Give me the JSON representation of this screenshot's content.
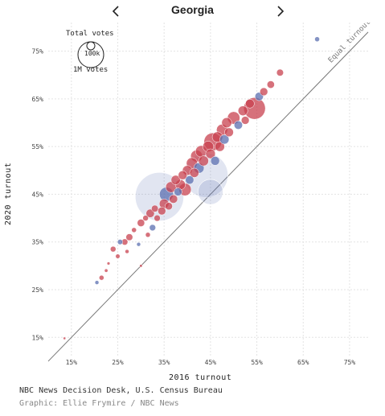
{
  "header": {
    "title": "Georgia",
    "prev_icon": "chevron-left-icon",
    "next_icon": "chevron-right-icon"
  },
  "legend": {
    "title": "Total votes",
    "size_small": "100k",
    "size_large": "1M votes"
  },
  "annotation": {
    "equal_line": "Equal turnout"
  },
  "source": "NBC News Decision Desk, U.S. Census Bureau",
  "credit": "Graphic: Ellie Frymire / NBC News",
  "colors": {
    "dem": "#5b6fb0",
    "rep": "#c8414f",
    "mixed": "#9a5a8a",
    "grid": "#e3e3e3"
  },
  "chart_data": {
    "type": "scatter",
    "xlabel": "2016 turnout",
    "ylabel": "2020 turnout",
    "xlim": [
      10,
      79
    ],
    "ylim": [
      11,
      81
    ],
    "x_ticks": [
      "15%",
      "25%",
      "35%",
      "45%",
      "55%",
      "65%",
      "75%"
    ],
    "x_tick_values": [
      15,
      25,
      35,
      45,
      55,
      65,
      75
    ],
    "y_ticks": [
      "15%",
      "25%",
      "35%",
      "45%",
      "55%",
      "65%",
      "75%"
    ],
    "y_tick_values": [
      15,
      25,
      35,
      45,
      55,
      65,
      75
    ],
    "grid": true,
    "reference_line": {
      "label": "Equal turnout",
      "x": [
        10,
        79
      ],
      "y": [
        10,
        79
      ]
    },
    "size_encoding": "total votes (bubble area)",
    "color_encoding": "red = Republican-leaning, blue = Democratic-leaning",
    "points": [
      {
        "x": 13.5,
        "y": 14.8,
        "votes": 400,
        "party": "rep"
      },
      {
        "x": 20.5,
        "y": 26.5,
        "votes": 2000,
        "party": "dem"
      },
      {
        "x": 21.5,
        "y": 27.5,
        "votes": 3000,
        "party": "rep"
      },
      {
        "x": 22.5,
        "y": 29.0,
        "votes": 1500,
        "party": "rep"
      },
      {
        "x": 23.0,
        "y": 30.5,
        "votes": 1200,
        "party": "rep"
      },
      {
        "x": 24.0,
        "y": 33.5,
        "votes": 4000,
        "party": "rep"
      },
      {
        "x": 25.0,
        "y": 32.0,
        "votes": 2500,
        "party": "rep"
      },
      {
        "x": 25.5,
        "y": 35.0,
        "votes": 3500,
        "party": "dem"
      },
      {
        "x": 26.5,
        "y": 35.0,
        "votes": 5000,
        "party": "rep"
      },
      {
        "x": 27.0,
        "y": 33.0,
        "votes": 2000,
        "party": "rep"
      },
      {
        "x": 27.5,
        "y": 36.0,
        "votes": 6000,
        "party": "rep"
      },
      {
        "x": 28.5,
        "y": 37.5,
        "votes": 3000,
        "party": "rep"
      },
      {
        "x": 29.5,
        "y": 34.5,
        "votes": 2000,
        "party": "dem"
      },
      {
        "x": 30.0,
        "y": 39.0,
        "votes": 7000,
        "party": "rep"
      },
      {
        "x": 31.0,
        "y": 40.0,
        "votes": 4000,
        "party": "rep"
      },
      {
        "x": 31.5,
        "y": 36.5,
        "votes": 3000,
        "party": "rep"
      },
      {
        "x": 32.0,
        "y": 41.0,
        "votes": 9000,
        "party": "rep"
      },
      {
        "x": 32.5,
        "y": 38.0,
        "votes": 5000,
        "party": "dem"
      },
      {
        "x": 33.0,
        "y": 42.0,
        "votes": 6000,
        "party": "rep"
      },
      {
        "x": 33.5,
        "y": 40.0,
        "votes": 5000,
        "party": "rep"
      },
      {
        "x": 34.0,
        "y": 44.5,
        "votes": 300000,
        "party": "dem"
      },
      {
        "x": 34.5,
        "y": 41.5,
        "votes": 8000,
        "party": "rep"
      },
      {
        "x": 35.0,
        "y": 43.0,
        "votes": 12000,
        "party": "rep"
      },
      {
        "x": 35.5,
        "y": 45.0,
        "votes": 25000,
        "party": "dem"
      },
      {
        "x": 36.0,
        "y": 42.5,
        "votes": 7000,
        "party": "rep"
      },
      {
        "x": 36.5,
        "y": 46.5,
        "votes": 15000,
        "party": "rep"
      },
      {
        "x": 37.0,
        "y": 44.0,
        "votes": 9000,
        "party": "rep"
      },
      {
        "x": 37.5,
        "y": 48.0,
        "votes": 11000,
        "party": "rep"
      },
      {
        "x": 38.0,
        "y": 45.5,
        "votes": 8000,
        "party": "dem"
      },
      {
        "x": 38.5,
        "y": 47.0,
        "votes": 13000,
        "party": "rep"
      },
      {
        "x": 39.0,
        "y": 49.0,
        "votes": 10000,
        "party": "rep"
      },
      {
        "x": 39.5,
        "y": 46.0,
        "votes": 20000,
        "party": "rep"
      },
      {
        "x": 40.0,
        "y": 50.0,
        "votes": 12000,
        "party": "rep"
      },
      {
        "x": 40.5,
        "y": 48.0,
        "votes": 9000,
        "party": "dem"
      },
      {
        "x": 41.0,
        "y": 51.5,
        "votes": 16000,
        "party": "rep"
      },
      {
        "x": 41.5,
        "y": 49.5,
        "votes": 11000,
        "party": "rep"
      },
      {
        "x": 42.0,
        "y": 53.0,
        "votes": 18000,
        "party": "rep"
      },
      {
        "x": 42.5,
        "y": 50.5,
        "votes": 14000,
        "party": "dem"
      },
      {
        "x": 43.0,
        "y": 54.0,
        "votes": 17000,
        "party": "rep"
      },
      {
        "x": 43.5,
        "y": 52.0,
        "votes": 13000,
        "party": "rep"
      },
      {
        "x": 44.0,
        "y": 49.0,
        "votes": 250000,
        "party": "dem"
      },
      {
        "x": 44.5,
        "y": 55.0,
        "votes": 15000,
        "party": "rep"
      },
      {
        "x": 45.0,
        "y": 53.5,
        "votes": 12000,
        "party": "rep"
      },
      {
        "x": 45.5,
        "y": 56.0,
        "votes": 40000,
        "party": "rep"
      },
      {
        "x": 46.0,
        "y": 52.0,
        "votes": 10000,
        "party": "dem"
      },
      {
        "x": 46.5,
        "y": 57.0,
        "votes": 14000,
        "party": "rep"
      },
      {
        "x": 47.0,
        "y": 55.0,
        "votes": 12000,
        "party": "rep"
      },
      {
        "x": 47.5,
        "y": 58.5,
        "votes": 16000,
        "party": "rep"
      },
      {
        "x": 48.0,
        "y": 56.5,
        "votes": 11000,
        "party": "dem"
      },
      {
        "x": 48.5,
        "y": 60.0,
        "votes": 13000,
        "party": "rep"
      },
      {
        "x": 49.0,
        "y": 58.0,
        "votes": 10000,
        "party": "rep"
      },
      {
        "x": 50.0,
        "y": 61.0,
        "votes": 20000,
        "party": "rep"
      },
      {
        "x": 51.0,
        "y": 59.5,
        "votes": 9000,
        "party": "dem"
      },
      {
        "x": 52.0,
        "y": 62.5,
        "votes": 12000,
        "party": "rep"
      },
      {
        "x": 52.5,
        "y": 60.5,
        "votes": 8000,
        "party": "rep"
      },
      {
        "x": 53.5,
        "y": 64.0,
        "votes": 10000,
        "party": "rep"
      },
      {
        "x": 54.5,
        "y": 63.0,
        "votes": 60000,
        "party": "rep"
      },
      {
        "x": 55.5,
        "y": 65.5,
        "votes": 9000,
        "party": "dem"
      },
      {
        "x": 56.5,
        "y": 66.5,
        "votes": 8000,
        "party": "rep"
      },
      {
        "x": 58.0,
        "y": 68.0,
        "votes": 7000,
        "party": "rep"
      },
      {
        "x": 60.0,
        "y": 70.5,
        "votes": 6000,
        "party": "rep"
      },
      {
        "x": 68.0,
        "y": 77.5,
        "votes": 3000,
        "party": "dem"
      },
      {
        "x": 45.0,
        "y": 45.5,
        "votes": 80000,
        "party": "dem"
      },
      {
        "x": 30.0,
        "y": 30.0,
        "votes": 1000,
        "party": "rep"
      }
    ]
  }
}
